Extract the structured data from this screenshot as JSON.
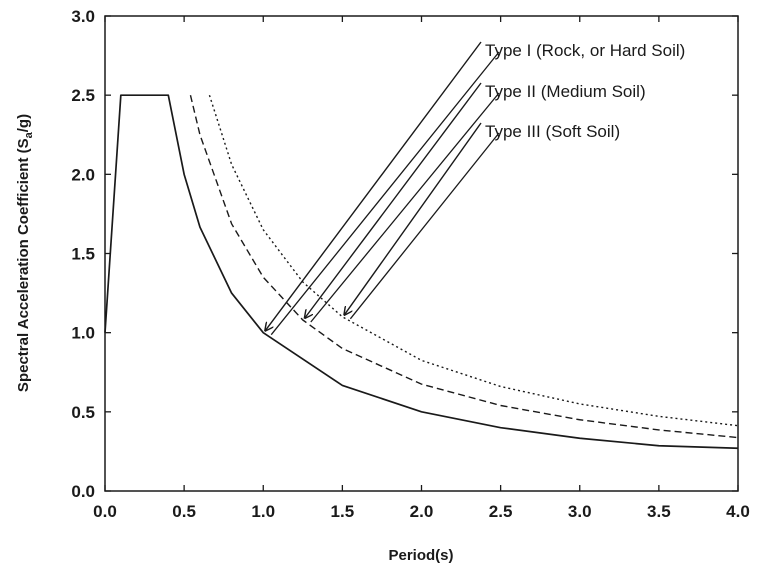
{
  "chart_data": {
    "type": "line",
    "title": "",
    "xlabel": "Period(s)",
    "ylabel_main": "Spectral Acceleration Coefficient (S",
    "ylabel_sub": "a",
    "ylabel_tail": "/g)",
    "xlim": [
      0,
      4
    ],
    "ylim": [
      0,
      3
    ],
    "xticks": [
      0,
      0.5,
      1.0,
      1.5,
      2.0,
      2.5,
      3.0,
      3.5,
      4.0
    ],
    "xtick_labels": [
      "0.0",
      "0.5",
      "1.0",
      "1.5",
      "2.0",
      "2.5",
      "3.0",
      "3.5",
      "4.0"
    ],
    "yticks": [
      0,
      0.5,
      1.0,
      1.5,
      2.0,
      2.5,
      3.0
    ],
    "ytick_labels": [
      "0.0",
      "0.5",
      "1.0",
      "1.5",
      "2.0",
      "2.5",
      "3.0"
    ],
    "grid": false,
    "series": [
      {
        "name": "Type I  (Rock, or Hard Soil)",
        "style": "solid",
        "color": "#1a1a1a",
        "points": [
          [
            0.0,
            1.0
          ],
          [
            0.1,
            2.5
          ],
          [
            0.4,
            2.5
          ],
          [
            0.5,
            2.0
          ],
          [
            0.6,
            1.6667
          ],
          [
            0.8,
            1.25
          ],
          [
            1.0,
            1.0
          ],
          [
            1.5,
            0.6667
          ],
          [
            2.0,
            0.5
          ],
          [
            2.5,
            0.4
          ],
          [
            3.0,
            0.3333
          ],
          [
            3.5,
            0.2857
          ],
          [
            4.0,
            0.27
          ]
        ],
        "arrow_tip": [
          1.0,
          1.0
        ]
      },
      {
        "name": "Type II (Medium Soil)",
        "style": "dashed",
        "color": "#1a1a1a",
        "points": [
          [
            0.54,
            2.5
          ],
          [
            0.6,
            2.25
          ],
          [
            0.8,
            1.6875
          ],
          [
            1.0,
            1.35
          ],
          [
            1.25,
            1.08
          ],
          [
            1.5,
            0.9
          ],
          [
            2.0,
            0.675
          ],
          [
            2.5,
            0.54
          ],
          [
            3.0,
            0.45
          ],
          [
            3.5,
            0.3857
          ],
          [
            4.0,
            0.3375
          ]
        ],
        "arrow_tip": [
          1.25,
          1.08
        ]
      },
      {
        "name": "Type III (Soft Soil)",
        "style": "dotted",
        "color": "#1a1a1a",
        "points": [
          [
            0.66,
            2.5
          ],
          [
            0.8,
            2.0625
          ],
          [
            1.0,
            1.65
          ],
          [
            1.25,
            1.32
          ],
          [
            1.5,
            1.1
          ],
          [
            2.0,
            0.825
          ],
          [
            2.5,
            0.66
          ],
          [
            3.0,
            0.55
          ],
          [
            3.5,
            0.4714
          ],
          [
            4.0,
            0.4125
          ]
        ],
        "arrow_tip": [
          1.5,
          1.1
        ]
      }
    ]
  }
}
